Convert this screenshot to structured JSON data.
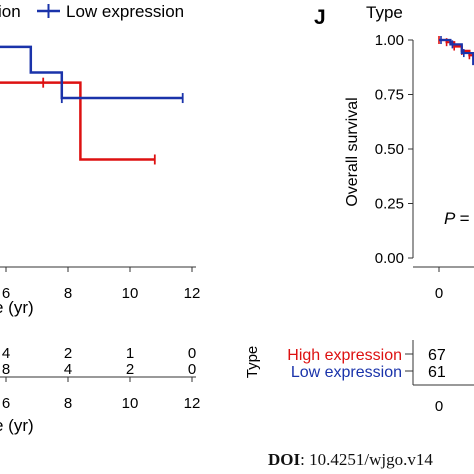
{
  "panel_letter": "J",
  "doi": {
    "label": "DOI",
    "value": ": 10.4251/wjgo.v14"
  },
  "chart_data": [
    {
      "type": "line",
      "chart_kind": "kaplan-meier",
      "legend": {
        "visible_text": [
          "ion",
          "Low expression"
        ],
        "placement": "top"
      },
      "xlabel_visible": "e (yr)",
      "x_ticks": [
        6,
        8,
        10,
        12
      ],
      "xlim": [
        4.2,
        12.4
      ],
      "ylim": [
        0,
        1
      ],
      "series": [
        {
          "color": "#dd1111",
          "x": [
            4.2,
            8.4,
            8.4,
            10.8
          ],
          "y": [
            0.72,
            0.72,
            0.42,
            0.42
          ],
          "censor_x": [
            5.1,
            7.2,
            10.8
          ],
          "censor_y": [
            0.72,
            0.72,
            0.42
          ]
        },
        {
          "name": "Low expression",
          "color": "#1a33aa",
          "x": [
            4.2,
            6.8,
            6.8,
            7.8,
            7.8,
            11.7
          ],
          "y": [
            0.86,
            0.86,
            0.76,
            0.76,
            0.66,
            0.66
          ],
          "censor_x": [
            4.2,
            7.8,
            11.7
          ],
          "censor_y": [
            0.86,
            0.66,
            0.66
          ]
        }
      ],
      "risk_table": {
        "x_ticks": [
          6,
          8,
          10,
          12
        ],
        "xlabel_visible": "e (yr)",
        "rows": [
          {
            "values": [
              "4",
              "2",
              "1",
              "0"
            ]
          },
          {
            "values": [
              "8",
              "4",
              "2",
              "0"
            ]
          }
        ]
      }
    },
    {
      "type": "line",
      "chart_kind": "kaplan-meier",
      "legend_title": "Type",
      "ylabel": "Overall survival",
      "y_ticks": [
        "1.00",
        "0.75",
        "0.50",
        "0.25",
        "0.00"
      ],
      "ylim": [
        0,
        1
      ],
      "x_ticks": [
        0
      ],
      "p_value_text": "P =",
      "series": [
        {
          "color": "#dd1111",
          "x": [
            0,
            0.2,
            0.4,
            0.6,
            0.8,
            1.0
          ],
          "y": [
            1.0,
            0.99,
            0.97,
            0.95,
            0.93,
            0.9
          ]
        },
        {
          "color": "#1a33aa",
          "x": [
            0,
            0.3,
            0.6,
            0.9,
            1.0
          ],
          "y": [
            1.0,
            0.98,
            0.94,
            0.89,
            0.87
          ]
        }
      ],
      "risk_table": {
        "title": "Type",
        "x_ticks": [
          0
        ],
        "rows": [
          {
            "label": "High expression",
            "color": "#dd1111",
            "values": [
              "67"
            ]
          },
          {
            "label": "Low expression",
            "color": "#1a33aa",
            "values": [
              "61"
            ]
          }
        ]
      }
    }
  ]
}
